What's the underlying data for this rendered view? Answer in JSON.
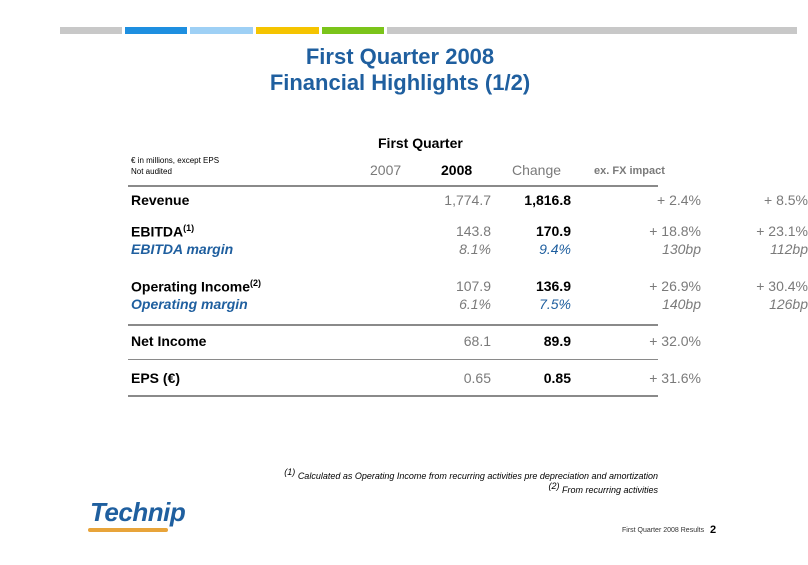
{
  "title": {
    "line1": "First Quarter 2008",
    "line2": "Financial Highlights (1/2)"
  },
  "top_bar_colors": [
    "#c8c8c8",
    "#1e8fe0",
    "#9ed0f5",
    "#f5c400",
    "#7bc41a",
    "#c8c8c8"
  ],
  "table": {
    "group_header": "First Quarter",
    "notes": [
      "€ in millions, except EPS",
      "Not audited"
    ],
    "columns": {
      "y2007": "2007",
      "y2008": "2008",
      "change": "Change",
      "fx": "ex. FX impact"
    },
    "rows": {
      "revenue": {
        "label": "Revenue",
        "y2007": "1,774.7",
        "y2008": "1,816.8",
        "change": "+ 2.4%",
        "fx": "+ 8.5%"
      },
      "ebitda": {
        "label": "EBITDA",
        "sup": "(1)",
        "y2007": "143.8",
        "y2008": "170.9",
        "change": "+ 18.8%",
        "fx": "+ 23.1%"
      },
      "ebitda_margin": {
        "label": "EBITDA margin",
        "y2007": "8.1%",
        "y2008": "9.4%",
        "change": "130bp",
        "fx": "112bp"
      },
      "op_income": {
        "label": "Operating Income",
        "sup": "(2)",
        "y2007": "107.9",
        "y2008": "136.9",
        "change": "+ 26.9%",
        "fx": "+ 30.4%"
      },
      "op_margin": {
        "label": "Operating margin",
        "y2007": "6.1%",
        "y2008": "7.5%",
        "change": "140bp",
        "fx": "126bp"
      },
      "net_income": {
        "label": "Net Income",
        "y2007": "68.1",
        "y2008": "89.9",
        "change": "+ 32.0%"
      },
      "eps": {
        "label": "EPS (€)",
        "y2007": "0.65",
        "y2008": "0.85",
        "change": "+ 31.6%"
      }
    }
  },
  "footnotes": {
    "f1_mark": "(1)",
    "f1": "Calculated as Operating Income from recurring activities pre depreciation and amortization",
    "f2_mark": "(2)",
    "f2": "From recurring activities"
  },
  "logo": {
    "text": "Technip"
  },
  "footer": {
    "label": "First Quarter 2008 Results",
    "page": "2"
  }
}
